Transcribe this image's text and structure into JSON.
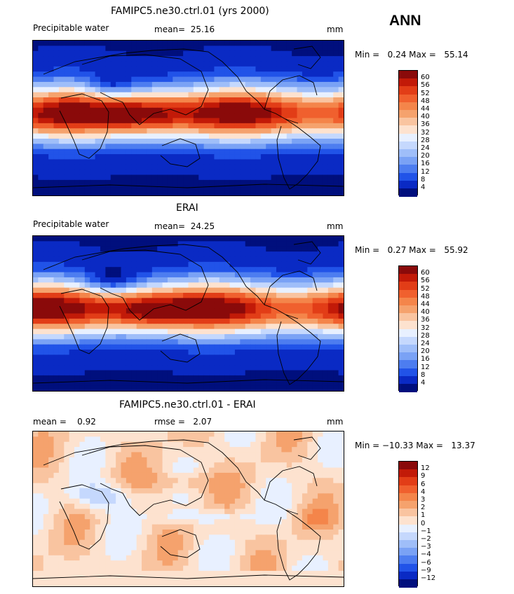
{
  "season_label": "ANN",
  "panels": [
    {
      "title": "FAMIPC5.ne30.ctrl.01 (yrs 2000)",
      "left_label": "Precipitable water",
      "mid_label": "mean=",
      "mid_value": "25.16",
      "units": "mm",
      "minmax": {
        "min_label": "Min =",
        "min": "0.24",
        "max_label": "Max =",
        "max": "55.14"
      }
    },
    {
      "title": "ERAI",
      "left_label": "Precipitable water",
      "mid_label": "mean=",
      "mid_value": "24.25",
      "units": "mm",
      "minmax": {
        "min_label": "Min =",
        "min": "0.27",
        "max_label": "Max =",
        "max": "55.92"
      }
    },
    {
      "title": "FAMIPC5.ne30.ctrl.01 - ERAI",
      "left_label": "mean =",
      "left_value": "0.92",
      "mid_label": "rmse =",
      "mid_value": "2.07",
      "units": "mm",
      "minmax": {
        "min_label": "Min =",
        "min": "−10.33",
        "max_label": "Max =",
        "max": "13.37"
      }
    }
  ],
  "chart_data": [
    {
      "type": "heatmap",
      "title": "FAMIPC5.ne30.ctrl.01 (yrs 2000)",
      "variable": "Precipitable water",
      "units": "mm",
      "mean": 25.16,
      "min": 0.24,
      "max": 55.14,
      "colorbar_levels": [
        "60",
        "56",
        "52",
        "48",
        "44",
        "40",
        "36",
        "32",
        "28",
        "24",
        "20",
        "16",
        "12",
        "8",
        "4"
      ],
      "colorbar_colors": [
        "#8a0a0a",
        "#c21a08",
        "#e23d17",
        "#f0602e",
        "#f4854a",
        "#f5a26d",
        "#f9c4a0",
        "#fde2cf",
        "#e8f0ff",
        "#c5d8fd",
        "#9fbef9",
        "#7aa2f5",
        "#4d7df0",
        "#2153e8",
        "#0a2ac4",
        "#000f7d"
      ]
    },
    {
      "type": "heatmap",
      "title": "ERAI",
      "variable": "Precipitable water",
      "units": "mm",
      "mean": 24.25,
      "min": 0.27,
      "max": 55.92,
      "colorbar_levels": [
        "60",
        "56",
        "52",
        "48",
        "44",
        "40",
        "36",
        "32",
        "28",
        "24",
        "20",
        "16",
        "12",
        "8",
        "4"
      ],
      "colorbar_colors": [
        "#8a0a0a",
        "#c21a08",
        "#e23d17",
        "#f0602e",
        "#f4854a",
        "#f5a26d",
        "#f9c4a0",
        "#fde2cf",
        "#e8f0ff",
        "#c5d8fd",
        "#9fbef9",
        "#7aa2f5",
        "#4d7df0",
        "#2153e8",
        "#0a2ac4",
        "#000f7d"
      ]
    },
    {
      "type": "heatmap",
      "title": "FAMIPC5.ne30.ctrl.01 - ERAI",
      "units": "mm",
      "mean": 0.92,
      "rmse": 2.07,
      "min": -10.33,
      "max": 13.37,
      "colorbar_levels": [
        "12",
        "9",
        "6",
        "4",
        "3",
        "2",
        "1",
        "0",
        "−1",
        "−2",
        "−3",
        "−4",
        "−6",
        "−9",
        "−12"
      ],
      "colorbar_colors": [
        "#8a0a0a",
        "#c21a08",
        "#e23d17",
        "#f0602e",
        "#f4854a",
        "#f5a26d",
        "#f9c4a0",
        "#fde2cf",
        "#e8f0ff",
        "#c5d8fd",
        "#9fbef9",
        "#7aa2f5",
        "#4d7df0",
        "#2153e8",
        "#0a2ac4",
        "#000f7d"
      ]
    }
  ]
}
